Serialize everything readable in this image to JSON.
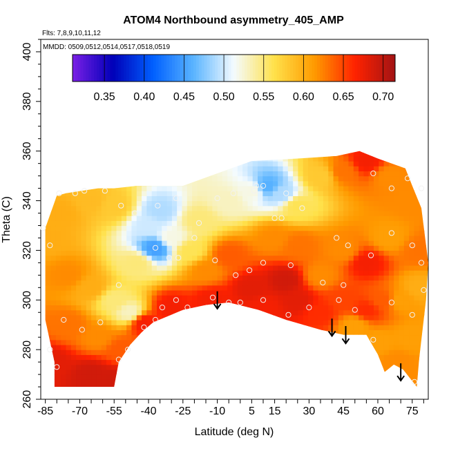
{
  "chart_data": {
    "type": "heatmap",
    "title": "ATOM4 Northbound asymmetry_405_AMP",
    "flights_note": "Flts: 7,8,9,10,11,12",
    "dates_note": "MMDD: 0509,0512,0514,0517,0518,0519",
    "xlabel": "Latitude (deg N)",
    "ylabel": "Theta (C)",
    "xlim": [
      -87,
      82
    ],
    "ylim": [
      260,
      405
    ],
    "x_ticks": [
      -85,
      -70,
      -55,
      -40,
      -25,
      -10,
      5,
      15,
      30,
      45,
      60,
      75
    ],
    "y_ticks": [
      260,
      280,
      300,
      320,
      340,
      360,
      380,
      400
    ],
    "colorbar": {
      "min": 0.31,
      "max": 0.715,
      "ticks": [
        "0.35",
        "0.40",
        "0.45",
        "0.50",
        "0.55",
        "0.60",
        "0.65",
        "0.70"
      ],
      "colors": [
        "#7a1fe6",
        "#0000b8",
        "#0060ff",
        "#5ab4ff",
        "#f4fbff",
        "#ffe14a",
        "#ff9a00",
        "#ff2200",
        "#a31414"
      ]
    },
    "region_outline": [
      [
        -85,
        329
      ],
      [
        -80,
        342
      ],
      [
        -76,
        343
      ],
      [
        -62,
        345
      ],
      [
        -55,
        345
      ],
      [
        -45,
        346
      ],
      [
        -25,
        346
      ],
      [
        -10,
        351
      ],
      [
        5,
        356
      ],
      [
        25,
        357
      ],
      [
        42,
        358
      ],
      [
        52,
        360
      ],
      [
        60,
        357
      ],
      [
        72,
        353
      ],
      [
        75,
        346
      ],
      [
        79,
        337
      ],
      [
        82,
        315
      ],
      [
        81,
        300
      ],
      [
        78,
        276
      ],
      [
        77,
        265
      ],
      [
        71,
        272
      ],
      [
        67,
        274
      ],
      [
        63,
        271
      ],
      [
        60,
        278
      ],
      [
        55,
        286
      ],
      [
        45,
        286
      ],
      [
        35,
        288
      ],
      [
        20,
        292
      ],
      [
        8,
        296
      ],
      [
        -5,
        299
      ],
      [
        -15,
        298
      ],
      [
        -25,
        296
      ],
      [
        -38,
        291
      ],
      [
        -43,
        287
      ],
      [
        -48,
        282
      ],
      [
        -53,
        275
      ],
      [
        -55,
        265
      ],
      [
        -81,
        265
      ],
      [
        -81,
        275
      ],
      [
        -85,
        292
      ]
    ],
    "field_points": [
      {
        "x": -84,
        "y": 325,
        "v": 0.6
      },
      {
        "x": -78,
        "y": 335,
        "v": 0.6
      },
      {
        "x": -65,
        "y": 340,
        "v": 0.59
      },
      {
        "x": -55,
        "y": 338,
        "v": 0.58
      },
      {
        "x": -75,
        "y": 310,
        "v": 0.62
      },
      {
        "x": -65,
        "y": 305,
        "v": 0.6
      },
      {
        "x": -55,
        "y": 300,
        "v": 0.55
      },
      {
        "x": -48,
        "y": 295,
        "v": 0.53
      },
      {
        "x": -45,
        "y": 315,
        "v": 0.55
      },
      {
        "x": -40,
        "y": 330,
        "v": 0.5
      },
      {
        "x": -37,
        "y": 321,
        "v": 0.45
      },
      {
        "x": -35,
        "y": 336,
        "v": 0.49
      },
      {
        "x": -30,
        "y": 325,
        "v": 0.52
      },
      {
        "x": -22,
        "y": 320,
        "v": 0.56
      },
      {
        "x": -18,
        "y": 332,
        "v": 0.55
      },
      {
        "x": -5,
        "y": 340,
        "v": 0.53
      },
      {
        "x": 5,
        "y": 344,
        "v": 0.52
      },
      {
        "x": 12,
        "y": 346,
        "v": 0.46
      },
      {
        "x": 18,
        "y": 343,
        "v": 0.49
      },
      {
        "x": 25,
        "y": 338,
        "v": 0.56
      },
      {
        "x": 35,
        "y": 350,
        "v": 0.58
      },
      {
        "x": 45,
        "y": 352,
        "v": 0.63
      },
      {
        "x": 55,
        "y": 356,
        "v": 0.67
      },
      {
        "x": 65,
        "y": 350,
        "v": 0.62
      },
      {
        "x": 75,
        "y": 340,
        "v": 0.62
      },
      {
        "x": 78,
        "y": 320,
        "v": 0.63
      },
      {
        "x": -82,
        "y": 275,
        "v": 0.68
      },
      {
        "x": -65,
        "y": 270,
        "v": 0.69
      },
      {
        "x": -57,
        "y": 268,
        "v": 0.69
      },
      {
        "x": -75,
        "y": 290,
        "v": 0.63
      },
      {
        "x": -62,
        "y": 285,
        "v": 0.62
      },
      {
        "x": -52,
        "y": 280,
        "v": 0.64
      },
      {
        "x": -42,
        "y": 291,
        "v": 0.67
      },
      {
        "x": -30,
        "y": 297,
        "v": 0.67
      },
      {
        "x": -12,
        "y": 300,
        "v": 0.67
      },
      {
        "x": -15,
        "y": 312,
        "v": 0.62
      },
      {
        "x": -5,
        "y": 318,
        "v": 0.64
      },
      {
        "x": 5,
        "y": 305,
        "v": 0.68
      },
      {
        "x": 10,
        "y": 297,
        "v": 0.67
      },
      {
        "x": 20,
        "y": 308,
        "v": 0.69
      },
      {
        "x": 25,
        "y": 300,
        "v": 0.68
      },
      {
        "x": 15,
        "y": 325,
        "v": 0.62
      },
      {
        "x": 25,
        "y": 322,
        "v": 0.63
      },
      {
        "x": 35,
        "y": 310,
        "v": 0.62
      },
      {
        "x": 35,
        "y": 295,
        "v": 0.66
      },
      {
        "x": 45,
        "y": 300,
        "v": 0.65
      },
      {
        "x": 45,
        "y": 320,
        "v": 0.62
      },
      {
        "x": 55,
        "y": 315,
        "v": 0.67
      },
      {
        "x": 55,
        "y": 296,
        "v": 0.66
      },
      {
        "x": 50,
        "y": 290,
        "v": 0.61
      },
      {
        "x": 60,
        "y": 283,
        "v": 0.61
      },
      {
        "x": 62,
        "y": 300,
        "v": 0.64
      },
      {
        "x": 65,
        "y": 325,
        "v": 0.61
      },
      {
        "x": 70,
        "y": 300,
        "v": 0.61
      },
      {
        "x": 75,
        "y": 285,
        "v": 0.61
      },
      {
        "x": 78,
        "y": 305,
        "v": 0.6
      },
      {
        "x": 68,
        "y": 275,
        "v": 0.62
      }
    ],
    "observations": [
      [
        -86,
        329
      ],
      [
        -83,
        322
      ],
      [
        -79,
        343
      ],
      [
        -72,
        343
      ],
      [
        -68,
        344
      ],
      [
        -59,
        344
      ],
      [
        -52,
        338
      ],
      [
        -46,
        335
      ],
      [
        -36,
        338
      ],
      [
        -28,
        341
      ],
      [
        -18,
        331
      ],
      [
        -10,
        341
      ],
      [
        -3,
        343
      ],
      [
        6,
        344
      ],
      [
        10,
        346
      ],
      [
        20,
        343
      ],
      [
        27,
        337
      ],
      [
        15,
        333
      ],
      [
        18,
        333
      ],
      [
        -37,
        321
      ],
      [
        -31,
        317
      ],
      [
        -27,
        317
      ],
      [
        -20,
        325
      ],
      [
        -11,
        316
      ],
      [
        -2,
        310
      ],
      [
        4,
        312
      ],
      [
        10,
        315
      ],
      [
        22,
        314
      ],
      [
        36,
        307
      ],
      [
        45,
        306
      ],
      [
        42,
        325
      ],
      [
        47,
        322
      ],
      [
        57,
        318
      ],
      [
        66,
        327
      ],
      [
        75,
        322
      ],
      [
        79,
        315
      ],
      [
        -77,
        292
      ],
      [
        -83,
        280
      ],
      [
        -80,
        273
      ],
      [
        -69,
        288
      ],
      [
        -61,
        291
      ],
      [
        -53,
        306
      ],
      [
        -49,
        280
      ],
      [
        -53,
        276
      ],
      [
        -42,
        289
      ],
      [
        -37,
        292
      ],
      [
        -34,
        297
      ],
      [
        -28,
        300
      ],
      [
        -23,
        297
      ],
      [
        -12,
        301
      ],
      [
        -5,
        299
      ],
      [
        0,
        299
      ],
      [
        10,
        300
      ],
      [
        21,
        294
      ],
      [
        30,
        297
      ],
      [
        43,
        300
      ],
      [
        50,
        296
      ],
      [
        58,
        284
      ],
      [
        66,
        299
      ],
      [
        75,
        294
      ],
      [
        80,
        304
      ],
      [
        76,
        267
      ],
      [
        83,
        265
      ],
      [
        66,
        345
      ],
      [
        73,
        349
      ],
      [
        79,
        345
      ],
      [
        58,
        351
      ],
      [
        7,
        346
      ]
    ],
    "arrows": [
      {
        "x": -10,
        "y_from": 303.5,
        "y_to": 296.5
      },
      {
        "x": 40,
        "y_from": 292.5,
        "y_to": 285.5
      },
      {
        "x": 46,
        "y_from": 289.5,
        "y_to": 282.5
      },
      {
        "x": 70,
        "y_from": 274.5,
        "y_to": 267.5
      }
    ]
  }
}
